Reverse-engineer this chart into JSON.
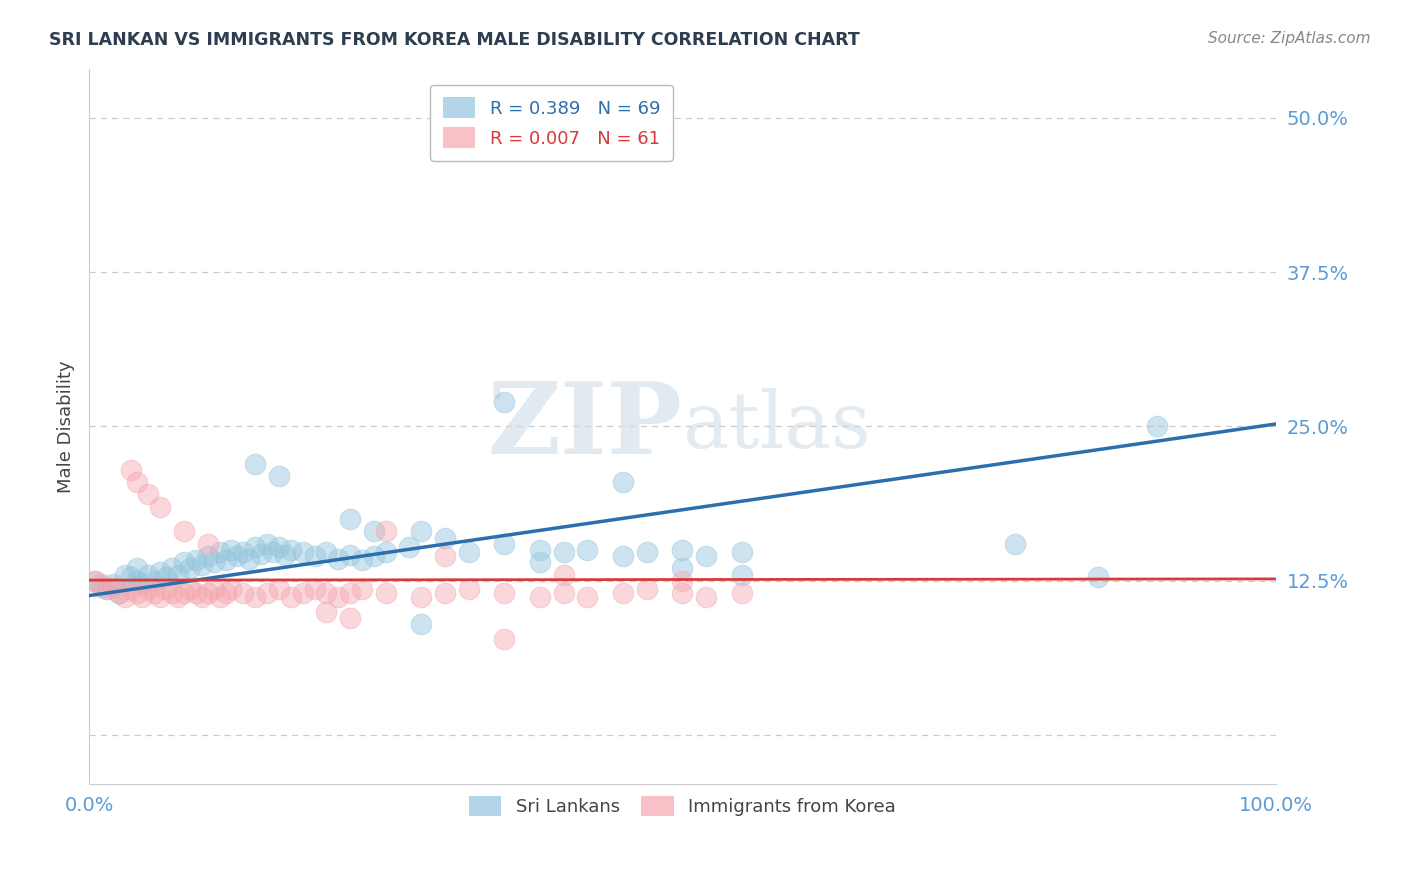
{
  "title": "SRI LANKAN VS IMMIGRANTS FROM KOREA MALE DISABILITY CORRELATION CHART",
  "source": "Source: ZipAtlas.com",
  "ylabel": "Male Disability",
  "yticks": [
    0.0,
    0.125,
    0.25,
    0.375,
    0.5
  ],
  "ytick_labels": [
    "",
    "12.5%",
    "25.0%",
    "37.5%",
    "50.0%"
  ],
  "xlim": [
    0.0,
    1.0
  ],
  "ylim": [
    -0.04,
    0.54
  ],
  "watermark_zip": "ZIP",
  "watermark_atlas": "atlas",
  "legend_r1": "R = 0.389",
  "legend_n1": "N = 69",
  "legend_r2": "R = 0.007",
  "legend_n2": "N = 61",
  "blue_color": "#92c5de",
  "pink_color": "#f4a7b0",
  "blue_line_color": "#2c6fad",
  "pink_line_color": "#d63a3a",
  "background_color": "#ffffff",
  "grid_color": "#cccccc",
  "title_color": "#2c3e50",
  "axis_label_color": "#444444",
  "tick_label_color": "#5b9bd5",
  "source_color": "#888888",
  "blue_scatter_x": [
    0.005,
    0.01,
    0.015,
    0.02,
    0.025,
    0.03,
    0.035,
    0.04,
    0.04,
    0.045,
    0.05,
    0.055,
    0.06,
    0.065,
    0.07,
    0.075,
    0.08,
    0.085,
    0.09,
    0.095,
    0.1,
    0.105,
    0.11,
    0.115,
    0.12,
    0.125,
    0.13,
    0.135,
    0.14,
    0.145,
    0.15,
    0.155,
    0.16,
    0.165,
    0.17,
    0.18,
    0.19,
    0.2,
    0.21,
    0.22,
    0.23,
    0.24,
    0.25,
    0.27,
    0.28,
    0.3,
    0.32,
    0.35,
    0.38,
    0.4,
    0.42,
    0.45,
    0.47,
    0.5,
    0.52,
    0.55,
    0.22,
    0.24,
    0.38,
    0.5,
    0.55,
    0.78,
    0.85,
    0.9,
    0.14,
    0.16,
    0.45,
    0.35,
    0.28
  ],
  "blue_scatter_y": [
    0.125,
    0.12,
    0.118,
    0.122,
    0.115,
    0.13,
    0.128,
    0.125,
    0.135,
    0.122,
    0.13,
    0.125,
    0.132,
    0.128,
    0.135,
    0.13,
    0.14,
    0.135,
    0.142,
    0.138,
    0.145,
    0.14,
    0.148,
    0.142,
    0.15,
    0.145,
    0.148,
    0.143,
    0.152,
    0.147,
    0.155,
    0.148,
    0.152,
    0.146,
    0.15,
    0.148,
    0.145,
    0.148,
    0.143,
    0.146,
    0.142,
    0.145,
    0.148,
    0.152,
    0.165,
    0.16,
    0.148,
    0.155,
    0.15,
    0.148,
    0.15,
    0.145,
    0.148,
    0.15,
    0.145,
    0.148,
    0.175,
    0.165,
    0.14,
    0.135,
    0.13,
    0.155,
    0.128,
    0.25,
    0.22,
    0.21,
    0.205,
    0.27,
    0.09
  ],
  "pink_scatter_x": [
    0.005,
    0.01,
    0.015,
    0.02,
    0.025,
    0.03,
    0.035,
    0.04,
    0.045,
    0.05,
    0.055,
    0.06,
    0.065,
    0.07,
    0.075,
    0.08,
    0.085,
    0.09,
    0.095,
    0.1,
    0.105,
    0.11,
    0.115,
    0.12,
    0.13,
    0.14,
    0.15,
    0.16,
    0.17,
    0.18,
    0.19,
    0.2,
    0.21,
    0.22,
    0.23,
    0.25,
    0.28,
    0.3,
    0.32,
    0.35,
    0.38,
    0.4,
    0.42,
    0.45,
    0.47,
    0.5,
    0.52,
    0.55,
    0.035,
    0.04,
    0.05,
    0.06,
    0.08,
    0.1,
    0.25,
    0.3,
    0.4,
    0.5,
    0.2,
    0.22,
    0.35
  ],
  "pink_scatter_y": [
    0.125,
    0.122,
    0.118,
    0.12,
    0.115,
    0.112,
    0.118,
    0.115,
    0.112,
    0.118,
    0.115,
    0.112,
    0.118,
    0.115,
    0.112,
    0.115,
    0.118,
    0.115,
    0.112,
    0.115,
    0.118,
    0.112,
    0.115,
    0.118,
    0.115,
    0.112,
    0.115,
    0.118,
    0.112,
    0.115,
    0.118,
    0.115,
    0.112,
    0.115,
    0.118,
    0.115,
    0.112,
    0.115,
    0.118,
    0.115,
    0.112,
    0.115,
    0.112,
    0.115,
    0.118,
    0.115,
    0.112,
    0.115,
    0.215,
    0.205,
    0.195,
    0.185,
    0.165,
    0.155,
    0.165,
    0.145,
    0.13,
    0.125,
    0.1,
    0.095,
    0.078
  ],
  "blue_line_x": [
    0.0,
    1.0
  ],
  "blue_line_y_start": 0.113,
  "blue_line_y_end": 0.252,
  "pink_line_x": [
    0.0,
    1.0
  ],
  "pink_line_y_start": 0.1255,
  "pink_line_y_end": 0.1265,
  "legend1_label": "Sri Lankans",
  "legend2_label": "Immigrants from Korea"
}
